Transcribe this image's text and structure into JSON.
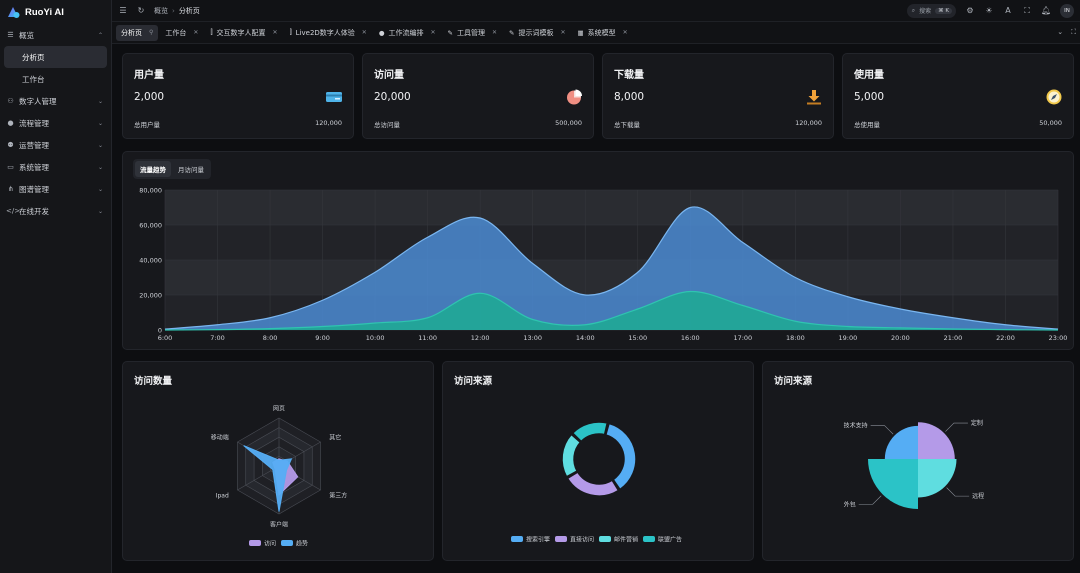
{
  "app": {
    "title": "RuoYi AI"
  },
  "sidebar": {
    "items": [
      {
        "label": "概览",
        "icon": "menu-icon",
        "expanded": true,
        "children": [
          {
            "label": "分析页",
            "active": true
          },
          {
            "label": "工作台",
            "active": false
          }
        ]
      },
      {
        "label": "数字人管理",
        "icon": "people-icon"
      },
      {
        "label": "流程管理",
        "icon": "user-icon"
      },
      {
        "label": "运营管理",
        "icon": "user-settings-icon"
      },
      {
        "label": "系统管理",
        "icon": "monitor-icon"
      },
      {
        "label": "图谱管理",
        "icon": "graph-icon"
      },
      {
        "label": "在线开发",
        "icon": "code-icon"
      }
    ]
  },
  "header": {
    "breadcrumb": [
      "概览",
      "分析页"
    ],
    "search_label": "搜索",
    "search_shortcut": "⌘ K",
    "avatar_text": "IN"
  },
  "tabs": [
    {
      "label": "分析页",
      "active": true,
      "pinned": true
    },
    {
      "label": "工作台",
      "closable": true
    },
    {
      "label": "交互数字人配置",
      "closable": true,
      "icon": "⫿"
    },
    {
      "label": "Live2D数字人体验",
      "closable": true,
      "icon": "⫿"
    },
    {
      "label": "工作流编排",
      "closable": true,
      "icon": "●"
    },
    {
      "label": "工具管理",
      "closable": true,
      "icon": "✎"
    },
    {
      "label": "提示词模板",
      "closable": true,
      "icon": "✎"
    },
    {
      "label": "系统模型",
      "closable": true,
      "icon": "▦"
    }
  ],
  "stats": [
    {
      "title": "用户量",
      "value": "2,000",
      "foot_label": "总用户量",
      "foot_value": "120,000",
      "icon": "card-icon",
      "color": "#4fb3e8"
    },
    {
      "title": "访问量",
      "value": "20,000",
      "foot_label": "总访问量",
      "foot_value": "500,000",
      "icon": "pie-icon",
      "color": "#f08f83"
    },
    {
      "title": "下载量",
      "value": "8,000",
      "foot_label": "总下载量",
      "foot_value": "120,000",
      "icon": "download-icon",
      "color": "#f2a33a"
    },
    {
      "title": "使用量",
      "value": "5,000",
      "foot_label": "总使用量",
      "foot_value": "50,000",
      "icon": "compass-icon",
      "color": "#f2c94c"
    }
  ],
  "trend": {
    "tabs": [
      {
        "label": "流量趋势",
        "active": true
      },
      {
        "label": "月访问量",
        "active": false
      }
    ]
  },
  "panels": {
    "radar_title": "访问数量",
    "donut_title": "访问来源",
    "rose_title": "访问来源"
  },
  "chart_data": [
    {
      "type": "area",
      "x": [
        "6:00",
        "7:00",
        "8:00",
        "9:00",
        "10:00",
        "11:00",
        "12:00",
        "13:00",
        "14:00",
        "15:00",
        "16:00",
        "17:00",
        "18:00",
        "19:00",
        "20:00",
        "21:00",
        "22:00",
        "23:00"
      ],
      "ylim": [
        0,
        80000
      ],
      "yticks": [
        "0",
        "20,000",
        "40,000",
        "60,000",
        "80,000"
      ],
      "grid": true,
      "series": [
        {
          "color": "#4d8fd9",
          "values": [
            500,
            3000,
            7000,
            17000,
            33000,
            53000,
            64000,
            38000,
            20000,
            33000,
            70000,
            50000,
            30000,
            19000,
            12000,
            7000,
            3000,
            500
          ]
        },
        {
          "color": "#1fa896",
          "values": [
            0,
            200,
            800,
            2000,
            4000,
            7000,
            21000,
            6000,
            3000,
            12000,
            22000,
            14000,
            5000,
            2000,
            1200,
            600,
            200,
            0
          ]
        }
      ]
    },
    {
      "type": "radar",
      "indicators": [
        "网页",
        "其它",
        "第三方",
        "客户端",
        "Ipad",
        "移动端"
      ],
      "max": 100,
      "legend": [
        "访问",
        "趋势"
      ],
      "series": [
        {
          "name": "访问",
          "color": "#b49ae8",
          "values": [
            15,
            20,
            45,
            60,
            10,
            15
          ]
        },
        {
          "name": "趋势",
          "color": "#55adf4",
          "values": [
            12,
            30,
            18,
            95,
            15,
            85
          ]
        }
      ]
    },
    {
      "type": "pie",
      "variant": "donut",
      "legend": [
        "搜索引擎",
        "直接访问",
        "邮件营销",
        "联盟广告"
      ],
      "slices": [
        {
          "name": "搜索引擎",
          "value": 1048,
          "color": "#55adf4"
        },
        {
          "name": "直接访问",
          "value": 735,
          "color": "#b49ae8"
        },
        {
          "name": "邮件营销",
          "value": 580,
          "color": "#5fdde0"
        },
        {
          "name": "联盟广告",
          "value": 484,
          "color": "#2bc3c7"
        }
      ]
    },
    {
      "type": "pie",
      "variant": "rose",
      "slices": [
        {
          "name": "外包",
          "value": 100,
          "color": "#2bc3c7"
        },
        {
          "name": "技术支持",
          "value": 52,
          "color": "#55adf4"
        },
        {
          "name": "定制",
          "value": 64,
          "color": "#b49ae8"
        },
        {
          "name": "远程",
          "value": 70,
          "color": "#5fdde0"
        }
      ]
    }
  ]
}
